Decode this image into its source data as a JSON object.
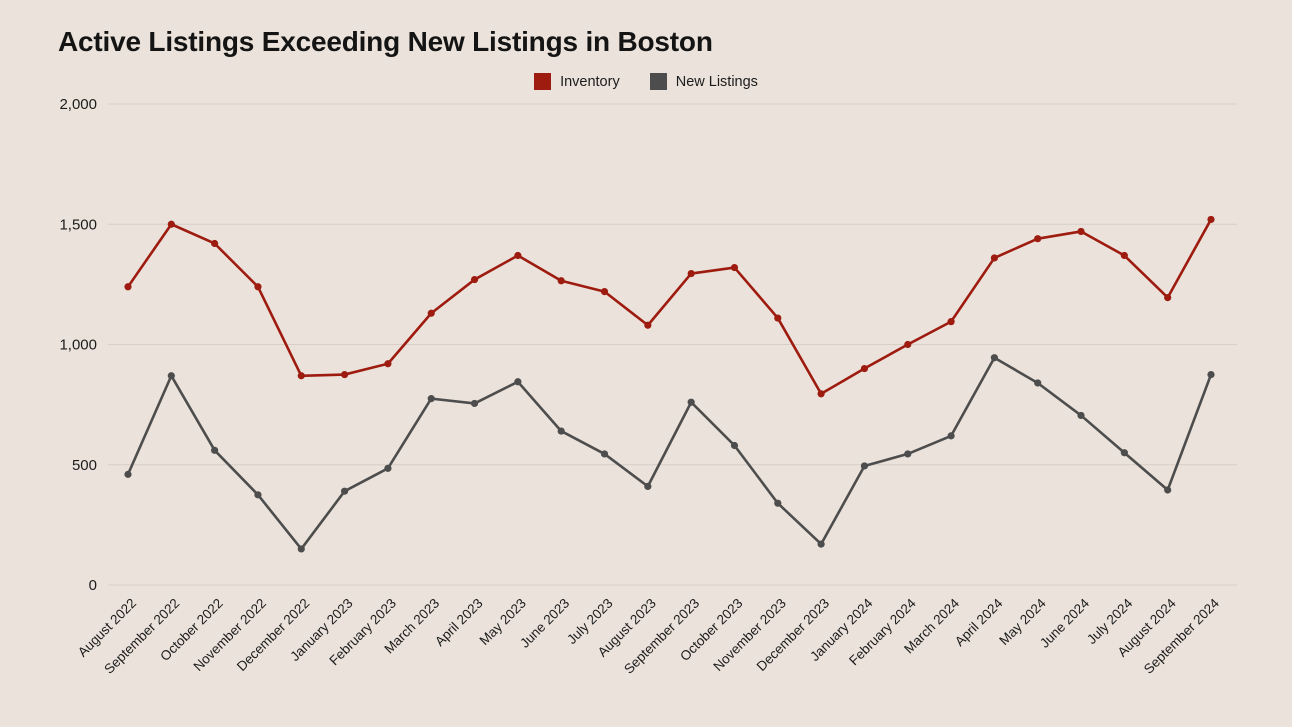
{
  "title": "Active Listings Exceeding New Listings in Boston",
  "colors": {
    "background": "#ebe3db",
    "gridline": "#d8d0c7",
    "text": "#1c1c1c",
    "inventory": "#9e1b10",
    "new_listings": "#4d4d4d"
  },
  "chart_data": {
    "type": "line",
    "title": "Active Listings Exceeding New Listings in Boston",
    "xlabel": "",
    "ylabel": "",
    "ylim": [
      0,
      2000
    ],
    "grid": true,
    "legend_position": "top-center",
    "yticks": [
      {
        "value": 0,
        "label": "0"
      },
      {
        "value": 500,
        "label": "500"
      },
      {
        "value": 1000,
        "label": "1,000"
      },
      {
        "value": 1500,
        "label": "1,500"
      },
      {
        "value": 2000,
        "label": "2,000"
      }
    ],
    "categories": [
      "August 2022",
      "September 2022",
      "October 2022",
      "November 2022",
      "December 2022",
      "January 2023",
      "February 2023",
      "March 2023",
      "April 2023",
      "May 2023",
      "June 2023",
      "July 2023",
      "August 2023",
      "September 2023",
      "October 2023",
      "November 2023",
      "December 2023",
      "January 2024",
      "February 2024",
      "March 2024",
      "April 2024",
      "May 2024",
      "June 2024",
      "July 2024",
      "August 2024",
      "September 2024"
    ],
    "series": [
      {
        "name": "Inventory",
        "color": "#9e1b10",
        "values": [
          1240,
          1500,
          1420,
          1240,
          870,
          875,
          920,
          1130,
          1270,
          1370,
          1265,
          1220,
          1080,
          1295,
          1320,
          1110,
          795,
          900,
          1000,
          1095,
          1360,
          1440,
          1470,
          1370,
          1195,
          1520
        ]
      },
      {
        "name": "New Listings",
        "color": "#4d4d4d",
        "values": [
          460,
          870,
          560,
          375,
          150,
          390,
          485,
          775,
          755,
          845,
          640,
          545,
          410,
          760,
          580,
          340,
          170,
          495,
          545,
          620,
          945,
          840,
          705,
          550,
          395,
          875
        ]
      }
    ]
  }
}
